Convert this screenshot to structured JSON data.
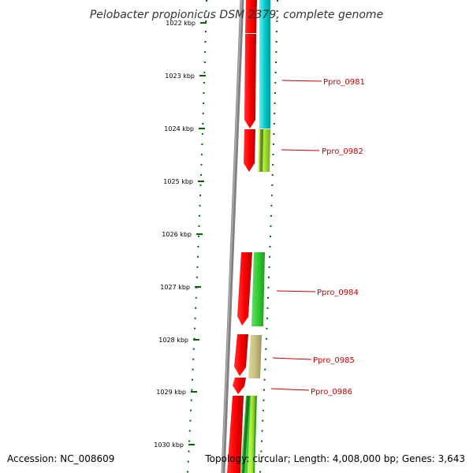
{
  "title": "Pelobacter propionicus DSM 2379, complete genome",
  "footer": {
    "accession": "Accession: NC_008609",
    "topology": "Topology: circular; Length: 4,008,000 bp; Genes: 3,643"
  },
  "colors": {
    "cds_forward": "#ff0000",
    "tick": "#006600",
    "backbone": "#808080",
    "label": "#cc0000",
    "cyan": "#00cccc",
    "green": "#33cc33",
    "lime": "#aaee33",
    "khaki": "#c8c080"
  },
  "ruler": {
    "unit": "kbp",
    "ticks": [
      {
        "kbp": 1022,
        "label": "1022 kbp"
      },
      {
        "kbp": 1023,
        "label": "1023 kbp"
      },
      {
        "kbp": 1024,
        "label": "1024 kbp"
      },
      {
        "kbp": 1025,
        "label": "1025 kbp"
      },
      {
        "kbp": 1026,
        "label": "1026 kbp"
      },
      {
        "kbp": 1027,
        "label": "1027 kbp"
      },
      {
        "kbp": 1028,
        "label": "1028 kbp"
      },
      {
        "kbp": 1029,
        "label": "1029 kbp"
      },
      {
        "kbp": 1030,
        "label": "1030 kbp"
      }
    ]
  },
  "genes": [
    {
      "name": "Ppro_0981"
    },
    {
      "name": "Ppro_0982"
    },
    {
      "name": "Ppro_0984"
    },
    {
      "name": "Ppro_0985"
    },
    {
      "name": "Ppro_0986"
    }
  ]
}
